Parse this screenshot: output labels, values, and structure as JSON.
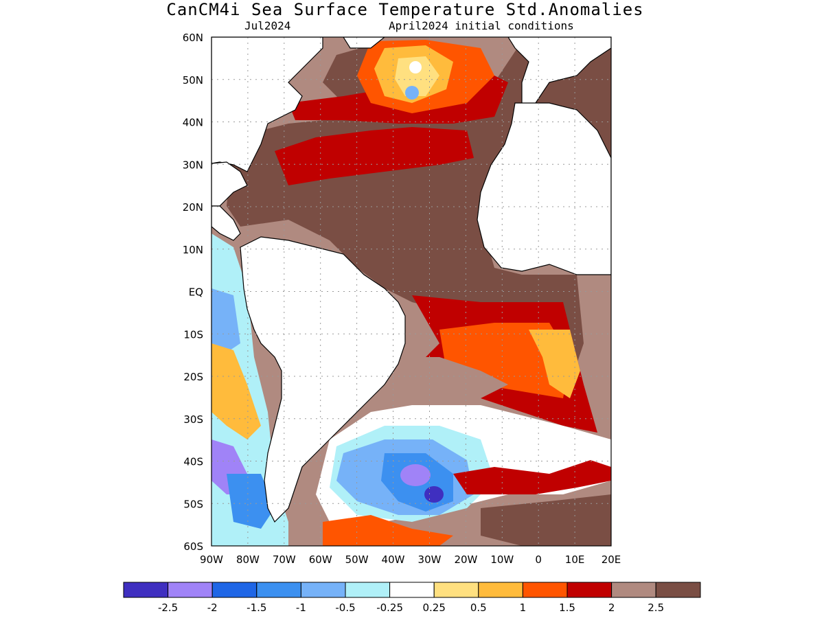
{
  "title": "CanCM4i Sea Surface Temperature Std.Anomalies",
  "subtitle_left": "Jul2024",
  "subtitle_right": "April2024 initial conditions",
  "map": {
    "lat_labels": [
      "60N",
      "50N",
      "40N",
      "30N",
      "20N",
      "10N",
      "EQ",
      "10S",
      "20S",
      "30S",
      "40S",
      "50S",
      "60S"
    ],
    "lon_labels": [
      "90W",
      "80W",
      "70W",
      "60W",
      "50W",
      "40W",
      "30W",
      "20W",
      "10W",
      "0",
      "10E",
      "20E"
    ]
  },
  "colors": {
    "land": "#ffffff",
    "coast": "#000000",
    "grid": "#888888",
    "brown_dark": "#7a4e44",
    "brown_light": "#b08a80",
    "red": "#c00000",
    "orange_dark": "#ff5500",
    "orange": "#ffb040",
    "yellow": "#ffe080",
    "light_blue": "#b0f0f8",
    "mid_blue": "#70b0f8",
    "blue": "#3c90f0",
    "blue_dark": "#1f66e6",
    "purple": "#a080f8",
    "purple_dark": "#4030c0"
  },
  "colorbar": {
    "colors": [
      "#3f2fc0",
      "#a083f7",
      "#1f66e6",
      "#3c90f0",
      "#76b2f8",
      "#b0f0f8",
      "#ffffff",
      "#ffe080",
      "#ffbb3c",
      "#ff5500",
      "#c00000",
      "#b08a80",
      "#7a4e44"
    ],
    "labels": [
      "-2.5",
      "-2",
      "-1.5",
      "-1",
      "-0.5",
      "-0.25",
      "0.25",
      "0.5",
      "1",
      "1.5",
      "2",
      "2.5"
    ]
  }
}
